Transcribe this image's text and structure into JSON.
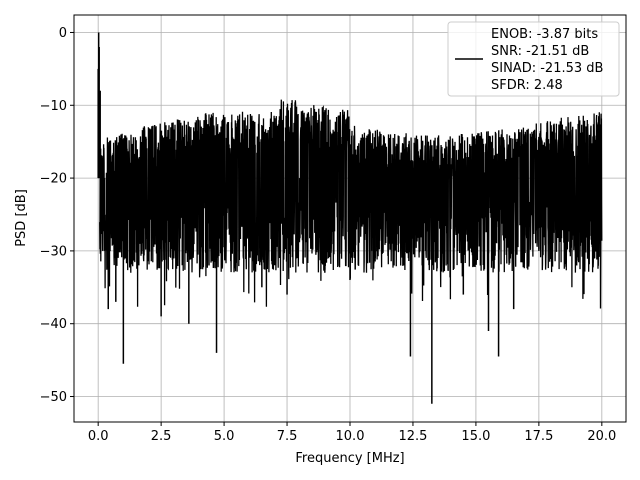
{
  "chart_data": {
    "type": "line",
    "title": "",
    "xlabel": "Frequency [MHz]",
    "ylabel": "PSD [dB]",
    "xlim": [
      -0.96,
      20.96
    ],
    "ylim": [
      -53.5,
      2.4
    ],
    "xticks": [
      0.0,
      2.5,
      5.0,
      7.5,
      10.0,
      12.5,
      15.0,
      17.5,
      20.0
    ],
    "xtick_labels": [
      "0.0",
      "2.5",
      "5.0",
      "7.5",
      "10.0",
      "12.5",
      "15.0",
      "17.5",
      "20.0"
    ],
    "yticks": [
      0,
      -10,
      -20,
      -30,
      -40,
      -50
    ],
    "ytick_labels": [
      "0",
      "−10",
      "−20",
      "−30",
      "−40",
      "−50"
    ],
    "grid": true,
    "legend_position": "top-right",
    "legend": [
      "ENOB: -3.87 bits",
      "SNR: -21.51 dB",
      "SINAD: -21.53 dB",
      "SFDR: 2.48"
    ],
    "line_color": "#000000",
    "series": [
      {
        "x": [
          0.0,
          0.02,
          0.04,
          0.06,
          0.08,
          0.12,
          0.25,
          0.4,
          0.55,
          0.7,
          0.85,
          1.0,
          1.2,
          1.5,
          1.8,
          2.1,
          2.5,
          2.8,
          3.2,
          3.6,
          4.0,
          4.4,
          4.7,
          5.0,
          5.5,
          6.0,
          6.5,
          7.0,
          7.5,
          8.0,
          8.5,
          9.0,
          9.5,
          10.0,
          10.5,
          11.0,
          11.5,
          12.0,
          12.4,
          13.0,
          13.25,
          13.5,
          14.0,
          14.5,
          15.0,
          15.5,
          15.9,
          16.2,
          16.5,
          17.0,
          17.5,
          18.0,
          18.5,
          19.0,
          19.5,
          20.0
        ],
        "y": [
          -5,
          0,
          -2,
          -20,
          -8,
          -20,
          -25,
          -38,
          -22,
          -37,
          -20,
          -45.5,
          -25,
          -22,
          -30,
          -24,
          -39,
          -26,
          -22,
          -40,
          -24,
          -32,
          -44,
          -25,
          -30,
          -22,
          -35,
          -24,
          -36,
          -28,
          -22,
          -33,
          -25,
          -34,
          -23,
          -31,
          -27,
          -22,
          -44.5,
          -30,
          -51,
          -23,
          -27,
          -36,
          -25,
          -41,
          -44.5,
          -25,
          -38,
          -24,
          -30,
          -27,
          -26,
          -32,
          -23,
          -20
        ]
      }
    ]
  }
}
